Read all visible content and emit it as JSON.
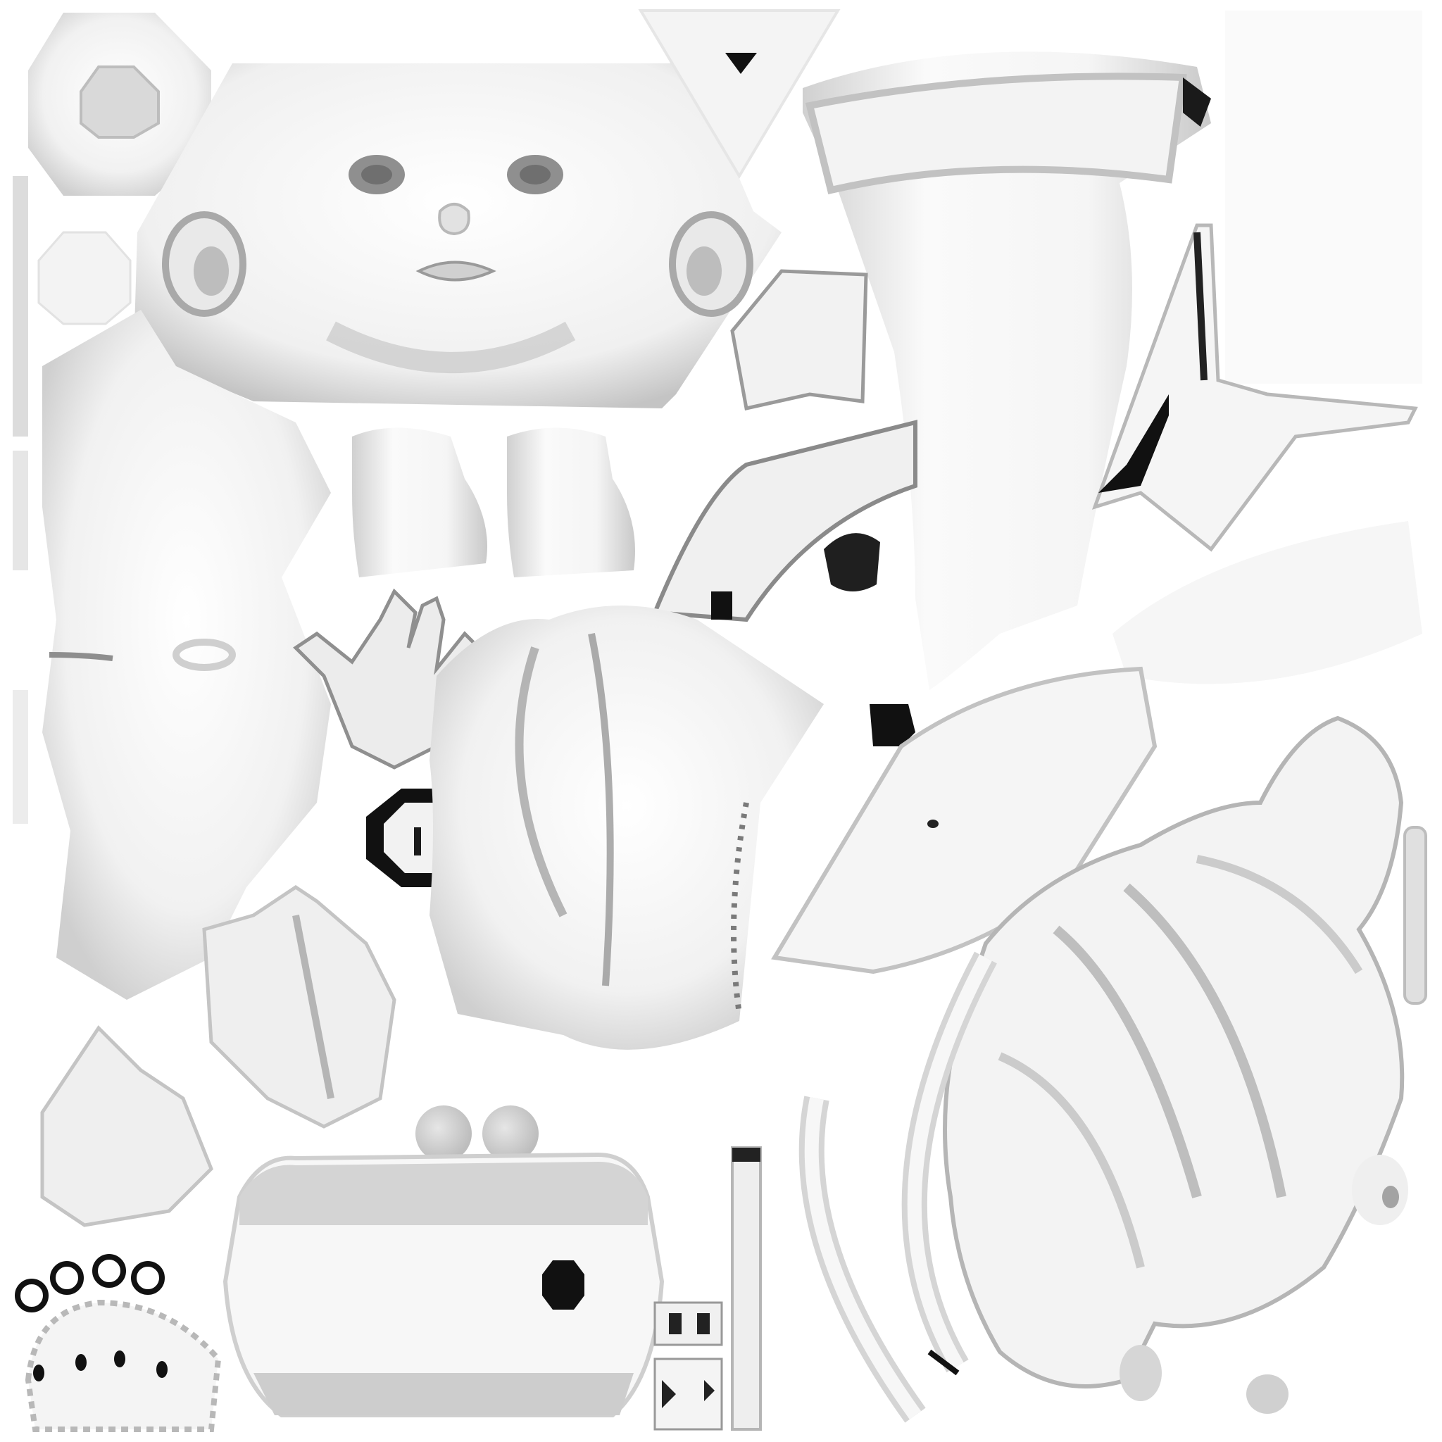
{
  "image": {
    "kind": "ambient occlusion texture atlas (UV layout) of a doll model",
    "background": "#ffffff",
    "palette": {
      "light": "#f2f2f2",
      "mid": "#c8c8c8",
      "shade": "#8e8e8e",
      "dark": "#2a2a2a",
      "black": "#000000"
    }
  },
  "pieces": [
    {
      "name": "face"
    },
    {
      "name": "left-ear"
    },
    {
      "name": "right-ear"
    },
    {
      "name": "torso"
    },
    {
      "name": "upper-leg"
    },
    {
      "name": "hair"
    },
    {
      "name": "hands"
    },
    {
      "name": "feet"
    },
    {
      "name": "shoe-sole"
    },
    {
      "name": "buttons"
    },
    {
      "name": "ribbons"
    }
  ],
  "text": []
}
